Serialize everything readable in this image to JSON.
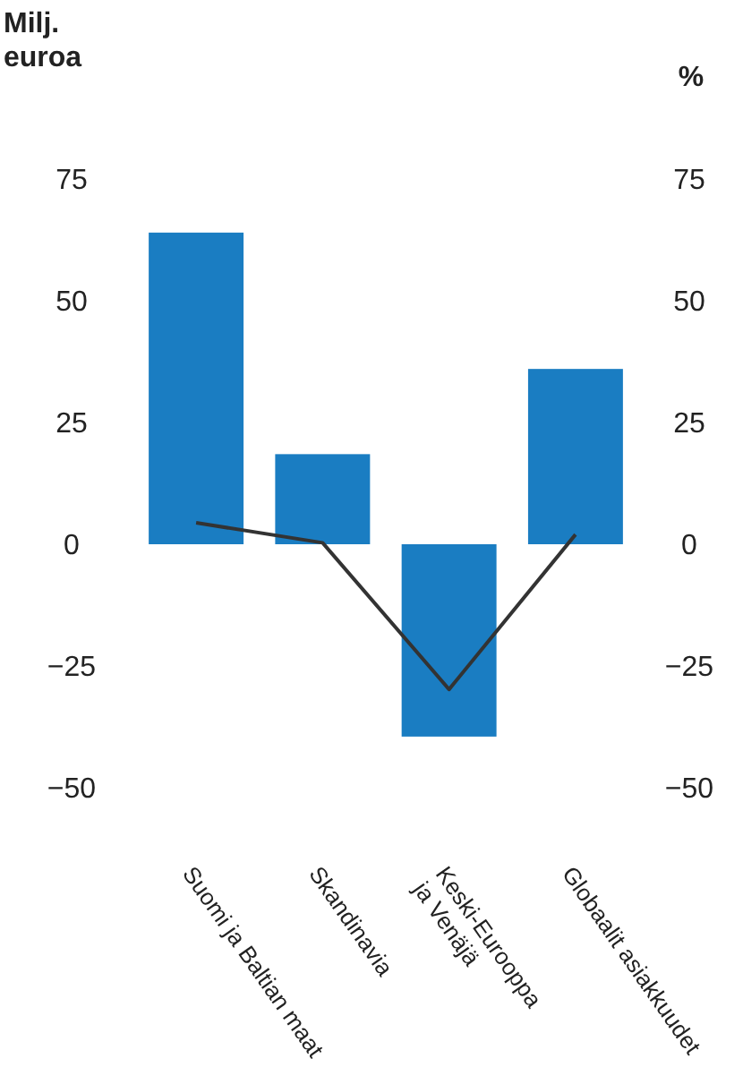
{
  "chart_data": {
    "type": "bar",
    "ylabel": "Milj.\neuroa",
    "y2label": "%",
    "categories": [
      "Suomi ja Baltian maat",
      "Skandinavia",
      "Keski-Eurooppa\nja Venäjä",
      "Globaalit asiakkuudet"
    ],
    "series": [
      {
        "color": "#1a7dc2",
        "values": [
          64,
          18.5,
          -39.5,
          36
        ]
      },
      {
        "type": "line",
        "axis": "y2",
        "color": "#333333",
        "values": [
          4.4,
          0.3,
          -29.8,
          2
        ]
      }
    ],
    "ylim": [
      -50,
      75
    ],
    "yticks": [
      -50,
      -25,
      0,
      25,
      50,
      75
    ],
    "y2lim": [
      -50,
      75
    ],
    "y2ticks": [
      -50,
      -25,
      0,
      25,
      50,
      75
    ],
    "marker": "none",
    "line_style": "solid",
    "grid": false
  }
}
